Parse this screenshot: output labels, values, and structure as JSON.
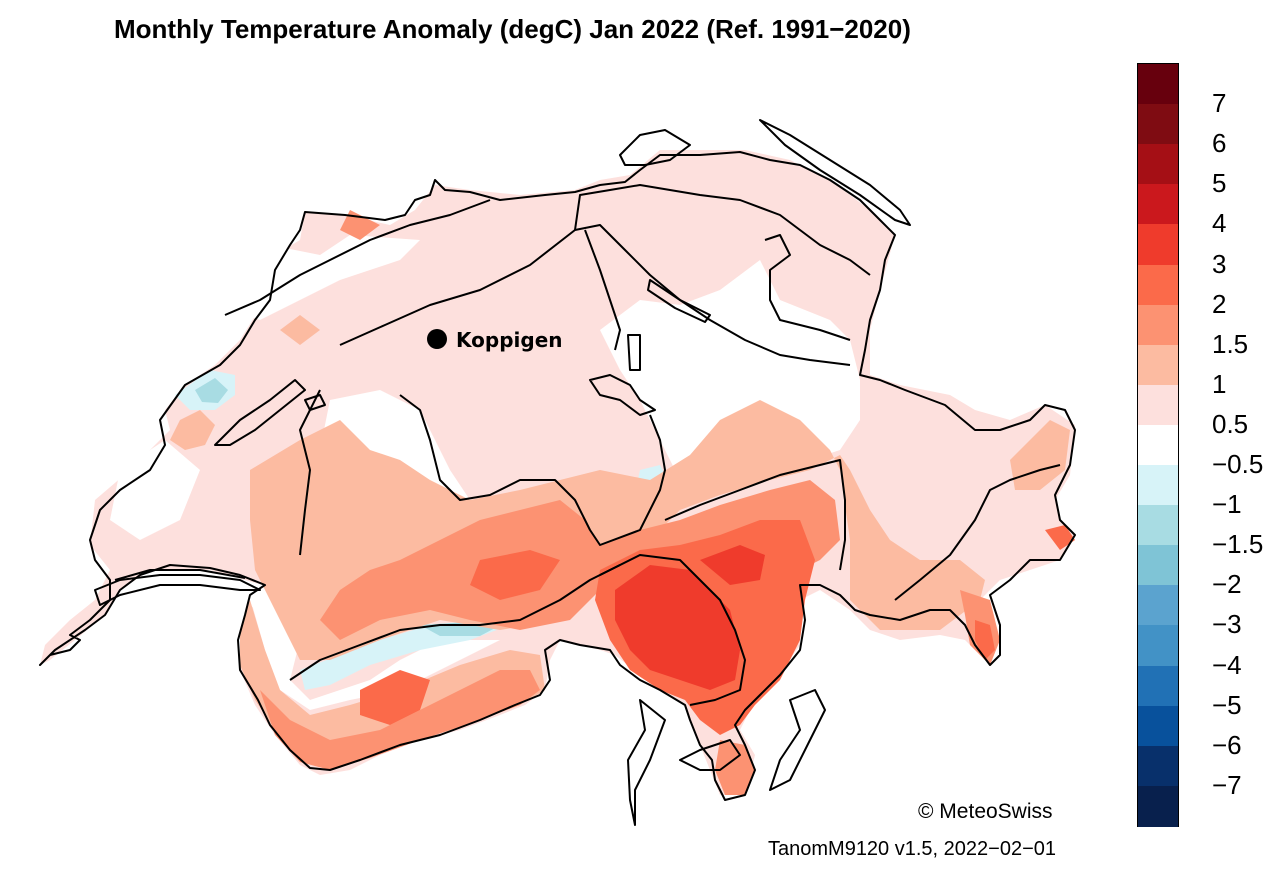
{
  "title": "Monthly Temperature Anomaly (degC) Jan 2022  (Ref. 1991−2020)",
  "station": {
    "name": "Koppigen"
  },
  "credit": "© MeteoSwiss",
  "version": "TanomM9120 v1.5, 2022−02−01",
  "legend": {
    "labels": [
      "7",
      "6",
      "5",
      "4",
      "3",
      "2",
      "1.5",
      "1",
      "0.5",
      "−0.5",
      "−1",
      "−1.5",
      "−2",
      "−3",
      "−4",
      "−5",
      "−6",
      "−7"
    ],
    "colors": [
      "#67000d",
      "#7f0c12",
      "#a50f15",
      "#cb181d",
      "#ef3b2c",
      "#fb6a4a",
      "#fc9272",
      "#fcbba1",
      "#fde0dd",
      "#ffffff",
      "#d7f3f8",
      "#a8dce3",
      "#7fc4d6",
      "#5ba3cf",
      "#4292c6",
      "#2171b5",
      "#08519c",
      "#08306b",
      "#08204d"
    ]
  },
  "map_colors": {
    "anomaly_0_5_to_1": "#fde0dd",
    "anomaly_1_to_1_5": "#fcbba1",
    "anomaly_1_5_to_2": "#fc9272",
    "anomaly_2_to_3": "#fb6a4a",
    "anomaly_3_to_4": "#ef3b2c",
    "anomaly_neg_0_5_to_0_5": "#ffffff",
    "anomaly_neg_1_to_neg_0_5": "#d7f3f8",
    "anomaly_neg_1_5_to_neg_1": "#a8dce3"
  }
}
